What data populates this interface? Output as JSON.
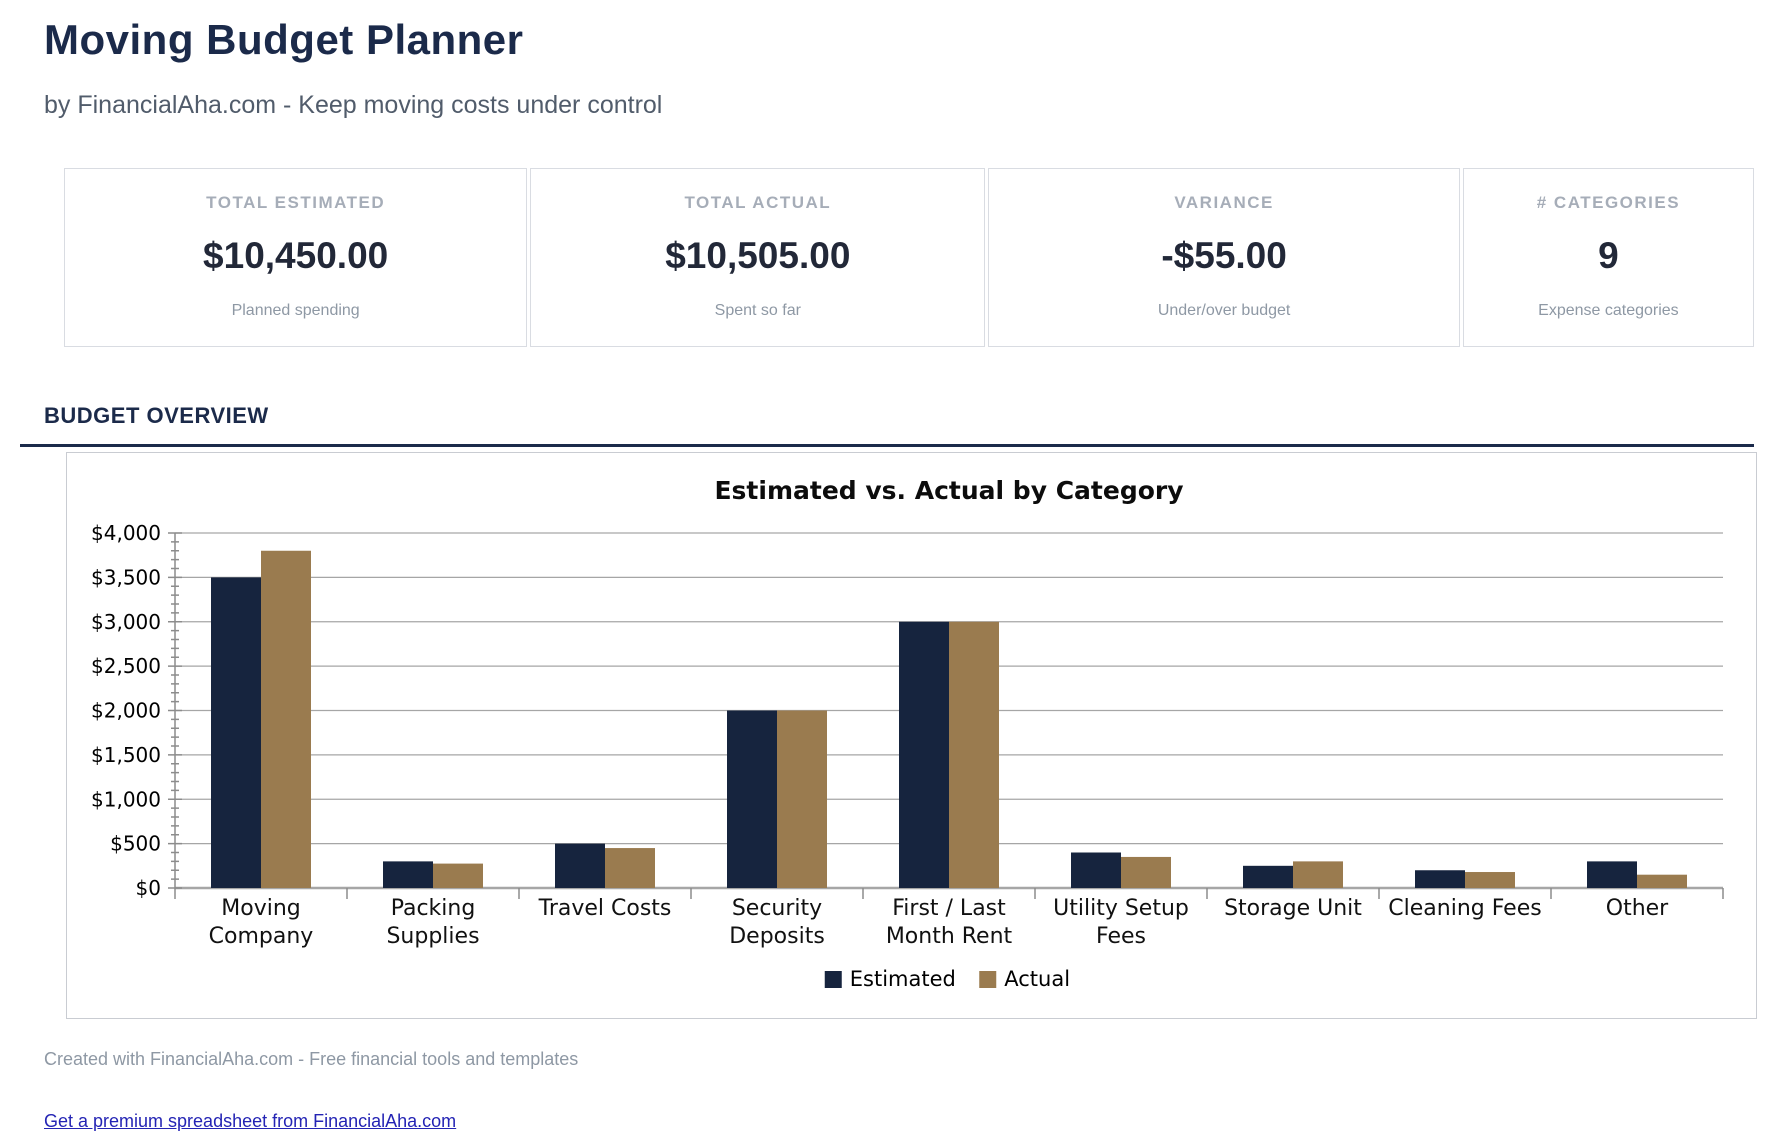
{
  "page": {
    "title": "Moving Budget Planner",
    "subtitle": "by FinancialAha.com - Keep moving costs under control",
    "section_header": "BUDGET OVERVIEW",
    "footer_note": "Created with FinancialAha.com - Free financial tools and templates",
    "footer_link": "Get a premium spreadsheet from FinancialAha.com"
  },
  "stats": [
    {
      "label": "TOTAL ESTIMATED",
      "value": "$10,450.00",
      "caption": "Planned spending"
    },
    {
      "label": "TOTAL ACTUAL",
      "value": "$10,505.00",
      "caption": "Spent so far"
    },
    {
      "label": "VARIANCE",
      "value": "-$55.00",
      "caption": "Under/over budget"
    },
    {
      "label": "# CATEGORIES",
      "value": "9",
      "caption": "Expense categories"
    }
  ],
  "colors": {
    "heading_navy": "#1b2a4a",
    "estimated_bar": "#16243e",
    "actual_bar": "#9a7b4f",
    "gridline": "#a6a6a6",
    "axis": "#8c8c8c",
    "link_blue": "#2424b4",
    "muted_gray": "#8e98a4"
  },
  "chart_data": {
    "type": "bar",
    "title": "Estimated vs. Actual by Category",
    "categories": [
      "Moving Company",
      "Packing Supplies",
      "Travel Costs",
      "Security Deposits",
      "First / Last Month Rent",
      "Utility Setup Fees",
      "Storage Unit",
      "Cleaning Fees",
      "Other"
    ],
    "categories_wrapped": [
      [
        "Moving",
        "Company"
      ],
      [
        "Packing",
        "Supplies"
      ],
      [
        "Travel Costs"
      ],
      [
        "Security",
        "Deposits"
      ],
      [
        "First / Last",
        "Month Rent"
      ],
      [
        "Utility Setup",
        "Fees"
      ],
      [
        "Storage Unit"
      ],
      [
        "Cleaning Fees"
      ],
      [
        "Other"
      ]
    ],
    "series": [
      {
        "name": "Estimated",
        "color": "#16243e",
        "values": [
          3500,
          300,
          500,
          2000,
          3000,
          400,
          250,
          200,
          300
        ]
      },
      {
        "name": "Actual",
        "color": "#9a7b4f",
        "values": [
          3800,
          275,
          450,
          2000,
          3000,
          350,
          300,
          180,
          150
        ]
      }
    ],
    "xlabel": "",
    "ylabel": "",
    "ylim": [
      0,
      4000
    ],
    "ytick_step": 500,
    "minor_tick_step": 100,
    "ytick_prefix": "$",
    "grid": true,
    "legend_position": "bottom"
  }
}
